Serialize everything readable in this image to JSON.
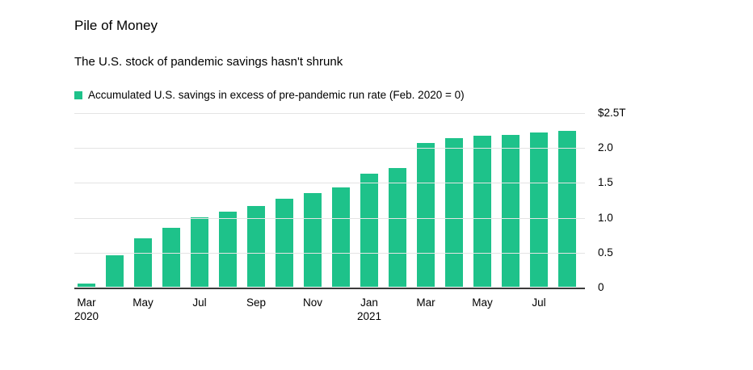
{
  "header": {
    "title": "Pile of Money",
    "subtitle": "The U.S. stock of pandemic savings hasn't shrunk"
  },
  "legend": {
    "label": "Accumulated U.S. savings in excess of pre-pandemic run rate (Feb. 2020 = 0)",
    "color": "#1ec28a"
  },
  "colors": {
    "bar": "#1ec28a",
    "gridline": "#e4e4e4",
    "zero_line": "#3a3a3a",
    "text": "#000000",
    "background": "#ffffff"
  },
  "chart_data": {
    "type": "bar",
    "title": "Pile of Money",
    "subtitle": "The U.S. stock of pandemic savings hasn't shrunk",
    "series_name": "Accumulated U.S. savings in excess of pre-pandemic run rate (Feb. 2020 = 0)",
    "unit": "trillions of U.S. dollars",
    "categories": [
      "Mar 2020",
      "Apr 2020",
      "May 2020",
      "Jun 2020",
      "Jul 2020",
      "Aug 2020",
      "Sep 2020",
      "Oct 2020",
      "Nov 2020",
      "Dec 2020",
      "Jan 2021",
      "Feb 2021",
      "Mar 2021",
      "Apr 2021",
      "May 2021",
      "Jun 2021",
      "Jul 2021",
      "Aug 2021"
    ],
    "values": [
      0.05,
      0.45,
      0.7,
      0.85,
      1.0,
      1.08,
      1.16,
      1.26,
      1.34,
      1.42,
      1.62,
      1.7,
      2.06,
      2.13,
      2.16,
      2.18,
      2.21,
      2.23
    ],
    "ylim": [
      0,
      2.5
    ],
    "grid": true,
    "legend_position": "top-left",
    "y_ticks": [
      {
        "value": 2.5,
        "label": "$2.5T"
      },
      {
        "value": 2.0,
        "label": "2.0"
      },
      {
        "value": 1.5,
        "label": "1.5"
      },
      {
        "value": 1.0,
        "label": "1.0"
      },
      {
        "value": 0.5,
        "label": "0.5"
      },
      {
        "value": 0.0,
        "label": "0"
      }
    ],
    "x_ticks": [
      {
        "index": 0,
        "lines": [
          "Mar",
          "2020"
        ]
      },
      {
        "index": 2,
        "lines": [
          "May"
        ]
      },
      {
        "index": 4,
        "lines": [
          "Jul"
        ]
      },
      {
        "index": 6,
        "lines": [
          "Sep"
        ]
      },
      {
        "index": 8,
        "lines": [
          "Nov"
        ]
      },
      {
        "index": 10,
        "lines": [
          "Jan",
          "2021"
        ]
      },
      {
        "index": 12,
        "lines": [
          "Mar"
        ]
      },
      {
        "index": 14,
        "lines": [
          "May"
        ]
      },
      {
        "index": 16,
        "lines": [
          "Jul"
        ]
      }
    ]
  }
}
